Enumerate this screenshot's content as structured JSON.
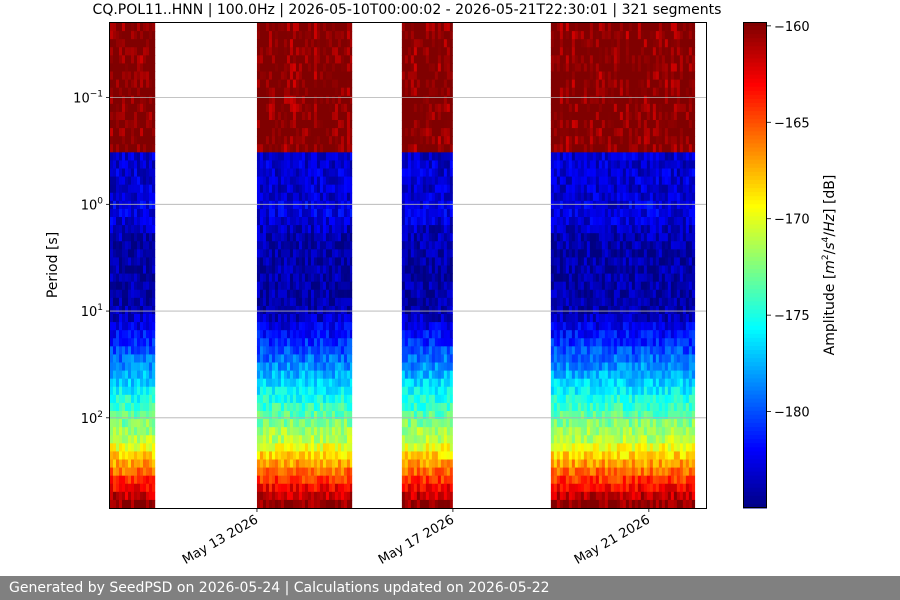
{
  "chart_data": {
    "type": "heatmap",
    "title": "CQ.POL11..HNN | 100.0Hz | 2026-05-10T00:00:02 - 2026-05-21T22:30:01 | 321 segments",
    "ylabel": "Period [s]",
    "yscale": "log",
    "ylim": [
      0.02,
      700
    ],
    "y_inverted": true,
    "y_ticks": [
      {
        "value": 0.1,
        "base": "10",
        "exp": "−1"
      },
      {
        "value": 1,
        "base": "10",
        "exp": "0"
      },
      {
        "value": 10,
        "base": "10",
        "exp": "1"
      },
      {
        "value": 100,
        "base": "10",
        "exp": "2"
      }
    ],
    "xlim": [
      "2026-05-10",
      "2026-05-22 04:00"
    ],
    "x_ticks": [
      {
        "date": "2026-05-13",
        "label": "May 13 2026"
      },
      {
        "date": "2026-05-17",
        "label": "May 17 2026"
      },
      {
        "date": "2026-05-21",
        "label": "May 21 2026"
      }
    ],
    "grid": "y-major",
    "data_blocks": [
      {
        "start": "2026-05-10 00:00",
        "end": "2026-05-10 22:00"
      },
      {
        "start": "2026-05-13 00:00",
        "end": "2026-05-14 22:30"
      },
      {
        "start": "2026-05-15 23:00",
        "end": "2026-05-16 23:50"
      },
      {
        "start": "2026-05-19 00:00",
        "end": "2026-05-21 22:30"
      }
    ],
    "colorbar": {
      "label": "Amplitude [m²/s⁴/Hz] [dB]",
      "label_parts": [
        "Amplitude [",
        "m",
        "2",
        "/",
        "s",
        "4",
        "/",
        "Hz",
        "] [dB]"
      ],
      "vmin": -185,
      "vmax": -159.8,
      "ticks": [
        -160,
        -165,
        -170,
        -175,
        -180
      ],
      "tick_labels": [
        "−160",
        "−165",
        "−170",
        "−175",
        "−180"
      ],
      "colormap": "jet"
    }
  },
  "footer": {
    "text": "Generated by SeedPSD on 2026-05-24 | Calculations updated on 2026-05-22",
    "background": "#808080"
  }
}
